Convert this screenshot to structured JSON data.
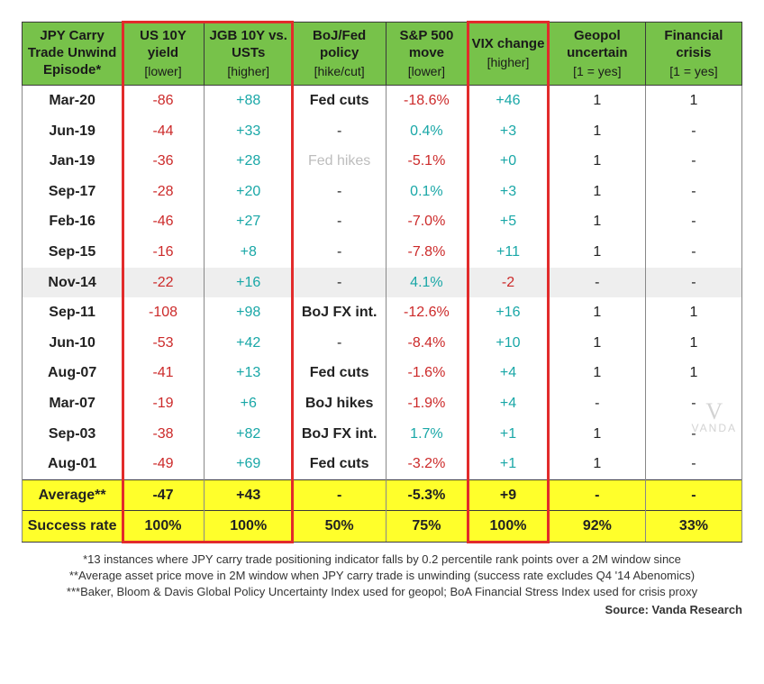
{
  "type": "table",
  "colors": {
    "header_bg": "#77c24a",
    "highlight_border": "#e22b2b",
    "yellow_row": "#ffff2b",
    "shaded_row": "#eeeeee",
    "neg_text": "#cc2a2a",
    "pos_text": "#19a7a7",
    "faded_text": "#bdbdbd"
  },
  "columns": [
    {
      "title": "JPY Carry Trade Unwind Episode*",
      "sub": ""
    },
    {
      "title": "US 10Y yield",
      "sub": "[lower]"
    },
    {
      "title": "JGB 10Y vs. USTs",
      "sub": "[higher]"
    },
    {
      "title": "BoJ/Fed policy",
      "sub": "[hike/cut]"
    },
    {
      "title": "S&P 500 move",
      "sub": "[lower]"
    },
    {
      "title": "VIX change",
      "sub": "[higher]"
    },
    {
      "title": "Geopol uncertain",
      "sub": "[1 = yes]"
    },
    {
      "title": "Financial crisis",
      "sub": "[1 = yes]"
    }
  ],
  "highlight_cols": [
    1,
    2,
    5
  ],
  "rows": [
    {
      "label": "Mar-20",
      "c": [
        {
          "t": "-86",
          "cls": "neg"
        },
        {
          "t": "+88",
          "cls": "pos"
        },
        {
          "t": "Fed cuts",
          "cls": "bold"
        },
        {
          "t": "-18.6%",
          "cls": "neg"
        },
        {
          "t": "+46",
          "cls": "pos"
        },
        {
          "t": "1"
        },
        {
          "t": "1"
        }
      ]
    },
    {
      "label": "Jun-19",
      "c": [
        {
          "t": "-44",
          "cls": "neg"
        },
        {
          "t": "+33",
          "cls": "pos"
        },
        {
          "t": "-"
        },
        {
          "t": "0.4%",
          "cls": "pos"
        },
        {
          "t": "+3",
          "cls": "pos"
        },
        {
          "t": "1"
        },
        {
          "t": "-"
        }
      ]
    },
    {
      "label": "Jan-19",
      "c": [
        {
          "t": "-36",
          "cls": "neg"
        },
        {
          "t": "+28",
          "cls": "pos"
        },
        {
          "t": "Fed hikes",
          "cls": "faded"
        },
        {
          "t": "-5.1%",
          "cls": "neg"
        },
        {
          "t": "+0",
          "cls": "pos"
        },
        {
          "t": "1"
        },
        {
          "t": "-"
        }
      ]
    },
    {
      "label": "Sep-17",
      "c": [
        {
          "t": "-28",
          "cls": "neg"
        },
        {
          "t": "+20",
          "cls": "pos"
        },
        {
          "t": "-"
        },
        {
          "t": "0.1%",
          "cls": "pos"
        },
        {
          "t": "+3",
          "cls": "pos"
        },
        {
          "t": "1"
        },
        {
          "t": "-"
        }
      ]
    },
    {
      "label": "Feb-16",
      "c": [
        {
          "t": "-46",
          "cls": "neg"
        },
        {
          "t": "+27",
          "cls": "pos"
        },
        {
          "t": "-"
        },
        {
          "t": "-7.0%",
          "cls": "neg"
        },
        {
          "t": "+5",
          "cls": "pos"
        },
        {
          "t": "1"
        },
        {
          "t": "-"
        }
      ]
    },
    {
      "label": "Sep-15",
      "c": [
        {
          "t": "-16",
          "cls": "neg"
        },
        {
          "t": "+8",
          "cls": "pos"
        },
        {
          "t": "-"
        },
        {
          "t": "-7.8%",
          "cls": "neg"
        },
        {
          "t": "+11",
          "cls": "pos"
        },
        {
          "t": "1"
        },
        {
          "t": "-"
        }
      ]
    },
    {
      "label": "Nov-14",
      "shaded": true,
      "c": [
        {
          "t": "-22",
          "cls": "neg"
        },
        {
          "t": "+16",
          "cls": "pos"
        },
        {
          "t": "-"
        },
        {
          "t": "4.1%",
          "cls": "pos"
        },
        {
          "t": "-2",
          "cls": "neg"
        },
        {
          "t": "-"
        },
        {
          "t": "-"
        }
      ]
    },
    {
      "label": "Sep-11",
      "c": [
        {
          "t": "-108",
          "cls": "neg"
        },
        {
          "t": "+98",
          "cls": "pos"
        },
        {
          "t": "BoJ FX int.",
          "cls": "bold"
        },
        {
          "t": "-12.6%",
          "cls": "neg"
        },
        {
          "t": "+16",
          "cls": "pos"
        },
        {
          "t": "1"
        },
        {
          "t": "1"
        }
      ]
    },
    {
      "label": "Jun-10",
      "c": [
        {
          "t": "-53",
          "cls": "neg"
        },
        {
          "t": "+42",
          "cls": "pos"
        },
        {
          "t": "-"
        },
        {
          "t": "-8.4%",
          "cls": "neg"
        },
        {
          "t": "+10",
          "cls": "pos"
        },
        {
          "t": "1"
        },
        {
          "t": "1"
        }
      ]
    },
    {
      "label": "Aug-07",
      "c": [
        {
          "t": "-41",
          "cls": "neg"
        },
        {
          "t": "+13",
          "cls": "pos"
        },
        {
          "t": "Fed cuts",
          "cls": "bold"
        },
        {
          "t": "-1.6%",
          "cls": "neg"
        },
        {
          "t": "+4",
          "cls": "pos"
        },
        {
          "t": "1"
        },
        {
          "t": "1"
        }
      ]
    },
    {
      "label": "Mar-07",
      "c": [
        {
          "t": "-19",
          "cls": "neg"
        },
        {
          "t": "+6",
          "cls": "pos"
        },
        {
          "t": "BoJ hikes",
          "cls": "bold"
        },
        {
          "t": "-1.9%",
          "cls": "neg"
        },
        {
          "t": "+4",
          "cls": "pos"
        },
        {
          "t": "-"
        },
        {
          "t": "-"
        }
      ]
    },
    {
      "label": "Sep-03",
      "c": [
        {
          "t": "-38",
          "cls": "neg"
        },
        {
          "t": "+82",
          "cls": "pos"
        },
        {
          "t": "BoJ FX int.",
          "cls": "bold"
        },
        {
          "t": "1.7%",
          "cls": "pos"
        },
        {
          "t": "+1",
          "cls": "pos"
        },
        {
          "t": "1"
        },
        {
          "t": "-"
        }
      ]
    },
    {
      "label": "Aug-01",
      "c": [
        {
          "t": "-49",
          "cls": "neg"
        },
        {
          "t": "+69",
          "cls": "pos"
        },
        {
          "t": "Fed cuts",
          "cls": "bold"
        },
        {
          "t": "-3.2%",
          "cls": "neg"
        },
        {
          "t": "+1",
          "cls": "pos"
        },
        {
          "t": "1"
        },
        {
          "t": "-"
        }
      ]
    }
  ],
  "summary": [
    {
      "label": "Average**",
      "c": [
        "-47",
        "+43",
        "-",
        "-5.3%",
        "+9",
        "-",
        "-"
      ]
    },
    {
      "label": "Success rate",
      "c": [
        "100%",
        "100%",
        "50%",
        "75%",
        "100%",
        "92%",
        "33%"
      ]
    }
  ],
  "footnotes": [
    "*13 instances where JPY carry trade positioning indicator falls by 0.2 percentile rank points over a 2M window since",
    "**Average asset price move in 2M window when JPY carry trade is unwinding (success rate excludes Q4 '14 Abenomics)",
    "***Baker, Bloom & Davis Global Policy Uncertainty Index used for geopol; BoA Financial Stress Index used for crisis proxy"
  ],
  "source": "Source: Vanda Research",
  "watermark": "VANDA"
}
